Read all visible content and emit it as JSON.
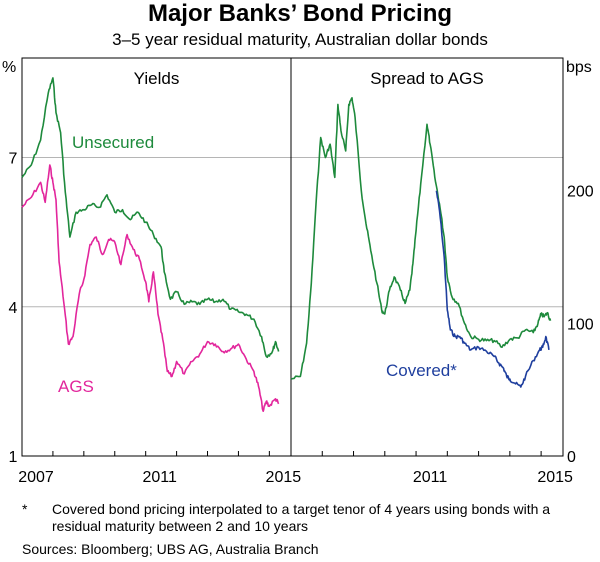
{
  "title": "Major Banks’ Bond Pricing",
  "subtitle": "3–5 year residual maturity, Australian dollar bonds",
  "footnote": {
    "marker": "*",
    "text": "Covered bond pricing interpolated to a target tenor of 4 years using bonds with a residual maturity between 2 and 10 years"
  },
  "sources": "Sources:  Bloomberg; UBS AG, Australia Branch",
  "colors": {
    "unsecured": "#1e8a3c",
    "ags": "#e2269c",
    "covered": "#1f3f9e",
    "grid": "#b5b5b5"
  },
  "chart_data": [
    {
      "type": "line",
      "panel_title": "Yields",
      "ylabel": "%",
      "ylim": [
        1,
        9
      ],
      "y_ticks": [
        1,
        4,
        7
      ],
      "xlim": [
        2007.0,
        2015.7
      ],
      "x_ticks": [
        2007,
        2011,
        2015
      ],
      "series": [
        {
          "name": "Unsecured",
          "color_key": "unsecured",
          "points": [
            [
              2007.0,
              6.6
            ],
            [
              2007.3,
              6.85
            ],
            [
              2007.6,
              7.35
            ],
            [
              2007.85,
              8.3
            ],
            [
              2008.0,
              8.6
            ],
            [
              2008.1,
              7.9
            ],
            [
              2008.25,
              7.5
            ],
            [
              2008.4,
              6.3
            ],
            [
              2008.55,
              5.4
            ],
            [
              2008.75,
              5.9
            ],
            [
              2009.0,
              5.95
            ],
            [
              2009.25,
              6.05
            ],
            [
              2009.5,
              6.0
            ],
            [
              2009.75,
              6.25
            ],
            [
              2010.0,
              5.9
            ],
            [
              2010.25,
              5.95
            ],
            [
              2010.5,
              5.75
            ],
            [
              2010.75,
              5.9
            ],
            [
              2011.0,
              5.7
            ],
            [
              2011.25,
              5.45
            ],
            [
              2011.5,
              5.2
            ],
            [
              2011.6,
              4.7
            ],
            [
              2011.8,
              4.15
            ],
            [
              2012.0,
              4.3
            ],
            [
              2012.25,
              4.05
            ],
            [
              2012.5,
              4.1
            ],
            [
              2012.75,
              4.05
            ],
            [
              2013.0,
              4.15
            ],
            [
              2013.25,
              4.1
            ],
            [
              2013.5,
              4.15
            ],
            [
              2013.75,
              3.95
            ],
            [
              2014.0,
              3.9
            ],
            [
              2014.25,
              3.85
            ],
            [
              2014.5,
              3.75
            ],
            [
              2014.75,
              3.4
            ],
            [
              2014.9,
              3.0
            ],
            [
              2015.1,
              3.1
            ],
            [
              2015.2,
              3.3
            ],
            [
              2015.3,
              3.1
            ]
          ]
        },
        {
          "name": "AGS",
          "color_key": "ags",
          "points": [
            [
              2007.0,
              6.0
            ],
            [
              2007.3,
              6.2
            ],
            [
              2007.6,
              6.5
            ],
            [
              2007.75,
              6.1
            ],
            [
              2007.9,
              6.85
            ],
            [
              2008.0,
              6.5
            ],
            [
              2008.1,
              6.15
            ],
            [
              2008.2,
              4.9
            ],
            [
              2008.35,
              4.1
            ],
            [
              2008.5,
              3.25
            ],
            [
              2008.65,
              3.4
            ],
            [
              2008.85,
              4.25
            ],
            [
              2009.0,
              4.55
            ],
            [
              2009.2,
              5.25
            ],
            [
              2009.4,
              5.4
            ],
            [
              2009.6,
              5.05
            ],
            [
              2009.8,
              5.35
            ],
            [
              2010.0,
              5.3
            ],
            [
              2010.2,
              4.85
            ],
            [
              2010.4,
              5.45
            ],
            [
              2010.6,
              5.15
            ],
            [
              2010.8,
              4.95
            ],
            [
              2011.0,
              4.5
            ],
            [
              2011.1,
              4.1
            ],
            [
              2011.25,
              4.7
            ],
            [
              2011.4,
              3.85
            ],
            [
              2011.55,
              3.35
            ],
            [
              2011.7,
              2.7
            ],
            [
              2011.85,
              2.6
            ],
            [
              2012.0,
              2.9
            ],
            [
              2012.25,
              2.65
            ],
            [
              2012.5,
              2.9
            ],
            [
              2012.75,
              3.05
            ],
            [
              2013.0,
              3.3
            ],
            [
              2013.25,
              3.25
            ],
            [
              2013.5,
              3.1
            ],
            [
              2013.75,
              3.15
            ],
            [
              2014.0,
              3.25
            ],
            [
              2014.25,
              2.95
            ],
            [
              2014.5,
              2.7
            ],
            [
              2014.65,
              2.4
            ],
            [
              2014.8,
              1.9
            ],
            [
              2014.9,
              2.1
            ],
            [
              2015.0,
              2.0
            ],
            [
              2015.2,
              2.15
            ],
            [
              2015.3,
              2.05
            ]
          ]
        }
      ]
    },
    {
      "type": "line",
      "panel_title": "Spread to AGS",
      "ylabel": "bps",
      "ylim": [
        0,
        300
      ],
      "y_ticks": [
        0,
        100,
        200
      ],
      "xlim": [
        2007.0,
        2015.7
      ],
      "x_ticks": [
        2011,
        2015
      ],
      "series": [
        {
          "name": "Unsecured",
          "color_key": "unsecured",
          "points": [
            [
              2007.0,
              58
            ],
            [
              2007.3,
              60
            ],
            [
              2007.5,
              85
            ],
            [
              2007.65,
              130
            ],
            [
              2007.8,
              190
            ],
            [
              2007.95,
              240
            ],
            [
              2008.1,
              225
            ],
            [
              2008.25,
              235
            ],
            [
              2008.4,
              210
            ],
            [
              2008.5,
              265
            ],
            [
              2008.6,
              245
            ],
            [
              2008.75,
              230
            ],
            [
              2008.85,
              265
            ],
            [
              2008.95,
              270
            ],
            [
              2009.05,
              255
            ],
            [
              2009.25,
              200
            ],
            [
              2009.4,
              175
            ],
            [
              2009.55,
              155
            ],
            [
              2009.75,
              130
            ],
            [
              2009.9,
              110
            ],
            [
              2010.0,
              107
            ],
            [
              2010.15,
              125
            ],
            [
              2010.3,
              135
            ],
            [
              2010.5,
              125
            ],
            [
              2010.65,
              115
            ],
            [
              2010.8,
              125
            ],
            [
              2010.9,
              145
            ],
            [
              2011.0,
              170
            ],
            [
              2011.15,
              205
            ],
            [
              2011.35,
              250
            ],
            [
              2011.45,
              235
            ],
            [
              2011.6,
              210
            ],
            [
              2011.75,
              190
            ],
            [
              2011.9,
              165
            ],
            [
              2012.0,
              135
            ],
            [
              2012.15,
              120
            ],
            [
              2012.35,
              115
            ],
            [
              2012.55,
              100
            ],
            [
              2012.75,
              90
            ],
            [
              2013.0,
              88
            ],
            [
              2013.25,
              87
            ],
            [
              2013.5,
              87
            ],
            [
              2013.75,
              82
            ],
            [
              2014.0,
              88
            ],
            [
              2014.25,
              89
            ],
            [
              2014.5,
              95
            ],
            [
              2014.75,
              93
            ],
            [
              2014.9,
              100
            ],
            [
              2015.0,
              107
            ],
            [
              2015.1,
              105
            ],
            [
              2015.2,
              108
            ],
            [
              2015.3,
              102
            ]
          ]
        },
        {
          "name": "Covered*",
          "color_key": "covered",
          "points": [
            [
              2011.65,
              200
            ],
            [
              2011.75,
              185
            ],
            [
              2011.9,
              150
            ],
            [
              2012.0,
              110
            ],
            [
              2012.1,
              95
            ],
            [
              2012.25,
              90
            ],
            [
              2012.4,
              90
            ],
            [
              2012.55,
              85
            ],
            [
              2012.75,
              80
            ],
            [
              2013.0,
              82
            ],
            [
              2013.25,
              79
            ],
            [
              2013.5,
              75
            ],
            [
              2013.65,
              70
            ],
            [
              2013.8,
              66
            ],
            [
              2013.9,
              60
            ],
            [
              2014.0,
              58
            ],
            [
              2014.15,
              55
            ],
            [
              2014.35,
              52
            ],
            [
              2014.5,
              60
            ],
            [
              2014.75,
              72
            ],
            [
              2014.95,
              80
            ],
            [
              2015.05,
              82
            ],
            [
              2015.15,
              90
            ],
            [
              2015.25,
              80
            ]
          ]
        }
      ]
    }
  ]
}
